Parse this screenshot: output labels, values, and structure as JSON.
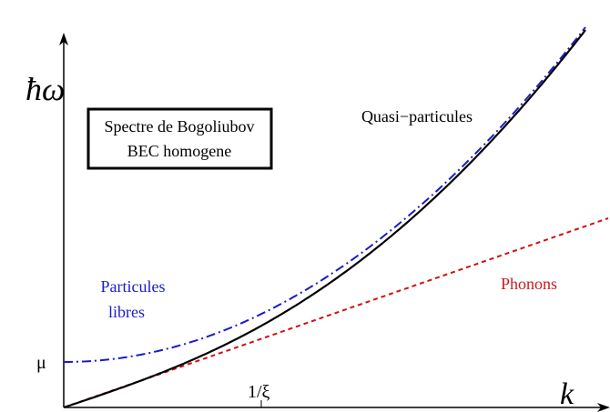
{
  "axes": {
    "y_label": "ħω",
    "x_label": "k",
    "y_tick": "μ",
    "x_tick": "1/ξ"
  },
  "box": {
    "lines": [
      "Spectre de Bogoliubov",
      "BEC homogene"
    ]
  },
  "curves": {
    "bogoliubov": "Quasi−particules",
    "free": [
      "Particules",
      "libres"
    ],
    "phonons": "Phonons"
  }
}
